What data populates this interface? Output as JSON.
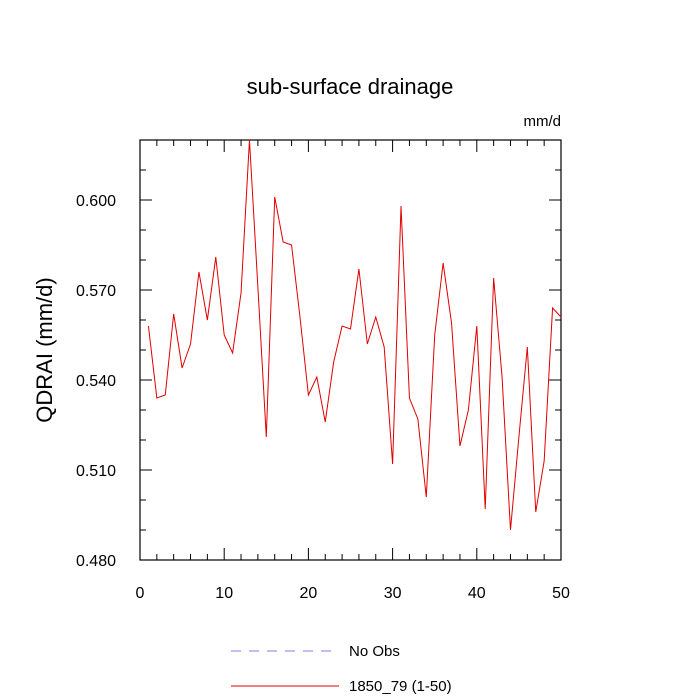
{
  "chart_data": {
    "type": "line",
    "title": "sub-surface drainage",
    "units": "mm/d",
    "xlabel": "",
    "ylabel": "QDRAI  (mm/d)",
    "xlim": [
      0,
      50
    ],
    "ylim": [
      0.48,
      0.62
    ],
    "xticks": [
      0,
      10,
      20,
      30,
      40,
      50
    ],
    "xtick_labels": [
      "0",
      "10",
      "20",
      "30",
      "40",
      "50"
    ],
    "yticks": [
      0.48,
      0.51,
      0.54,
      0.57,
      0.6
    ],
    "ytick_labels": [
      "0.480",
      "0.510",
      "0.540",
      "0.570",
      "0.600"
    ],
    "grid": false,
    "legend_position": "bottom-center",
    "series": [
      {
        "name": "No Obs",
        "color": "#7f7fe0",
        "dash": "dashed",
        "x": [],
        "values": []
      },
      {
        "name": "1850_79 (1-50)",
        "color": "#e00000",
        "dash": "solid",
        "x": [
          1,
          2,
          3,
          4,
          5,
          6,
          7,
          8,
          9,
          10,
          11,
          12,
          13,
          14,
          15,
          16,
          17,
          18,
          19,
          20,
          21,
          22,
          23,
          24,
          25,
          26,
          27,
          28,
          29,
          30,
          31,
          32,
          33,
          34,
          35,
          36,
          37,
          38,
          39,
          40,
          41,
          42,
          43,
          44,
          45,
          46,
          47,
          48,
          49,
          50
        ],
        "values": [
          0.558,
          0.534,
          0.535,
          0.562,
          0.544,
          0.552,
          0.576,
          0.56,
          0.581,
          0.555,
          0.549,
          0.569,
          0.62,
          0.571,
          0.521,
          0.601,
          0.586,
          0.585,
          0.561,
          0.535,
          0.541,
          0.526,
          0.546,
          0.558,
          0.557,
          0.577,
          0.552,
          0.561,
          0.551,
          0.512,
          0.598,
          0.534,
          0.527,
          0.501,
          0.555,
          0.579,
          0.559,
          0.518,
          0.53,
          0.558,
          0.497,
          0.574,
          0.541,
          0.49,
          0.521,
          0.551,
          0.496,
          0.513,
          0.564,
          0.561
        ]
      }
    ]
  }
}
